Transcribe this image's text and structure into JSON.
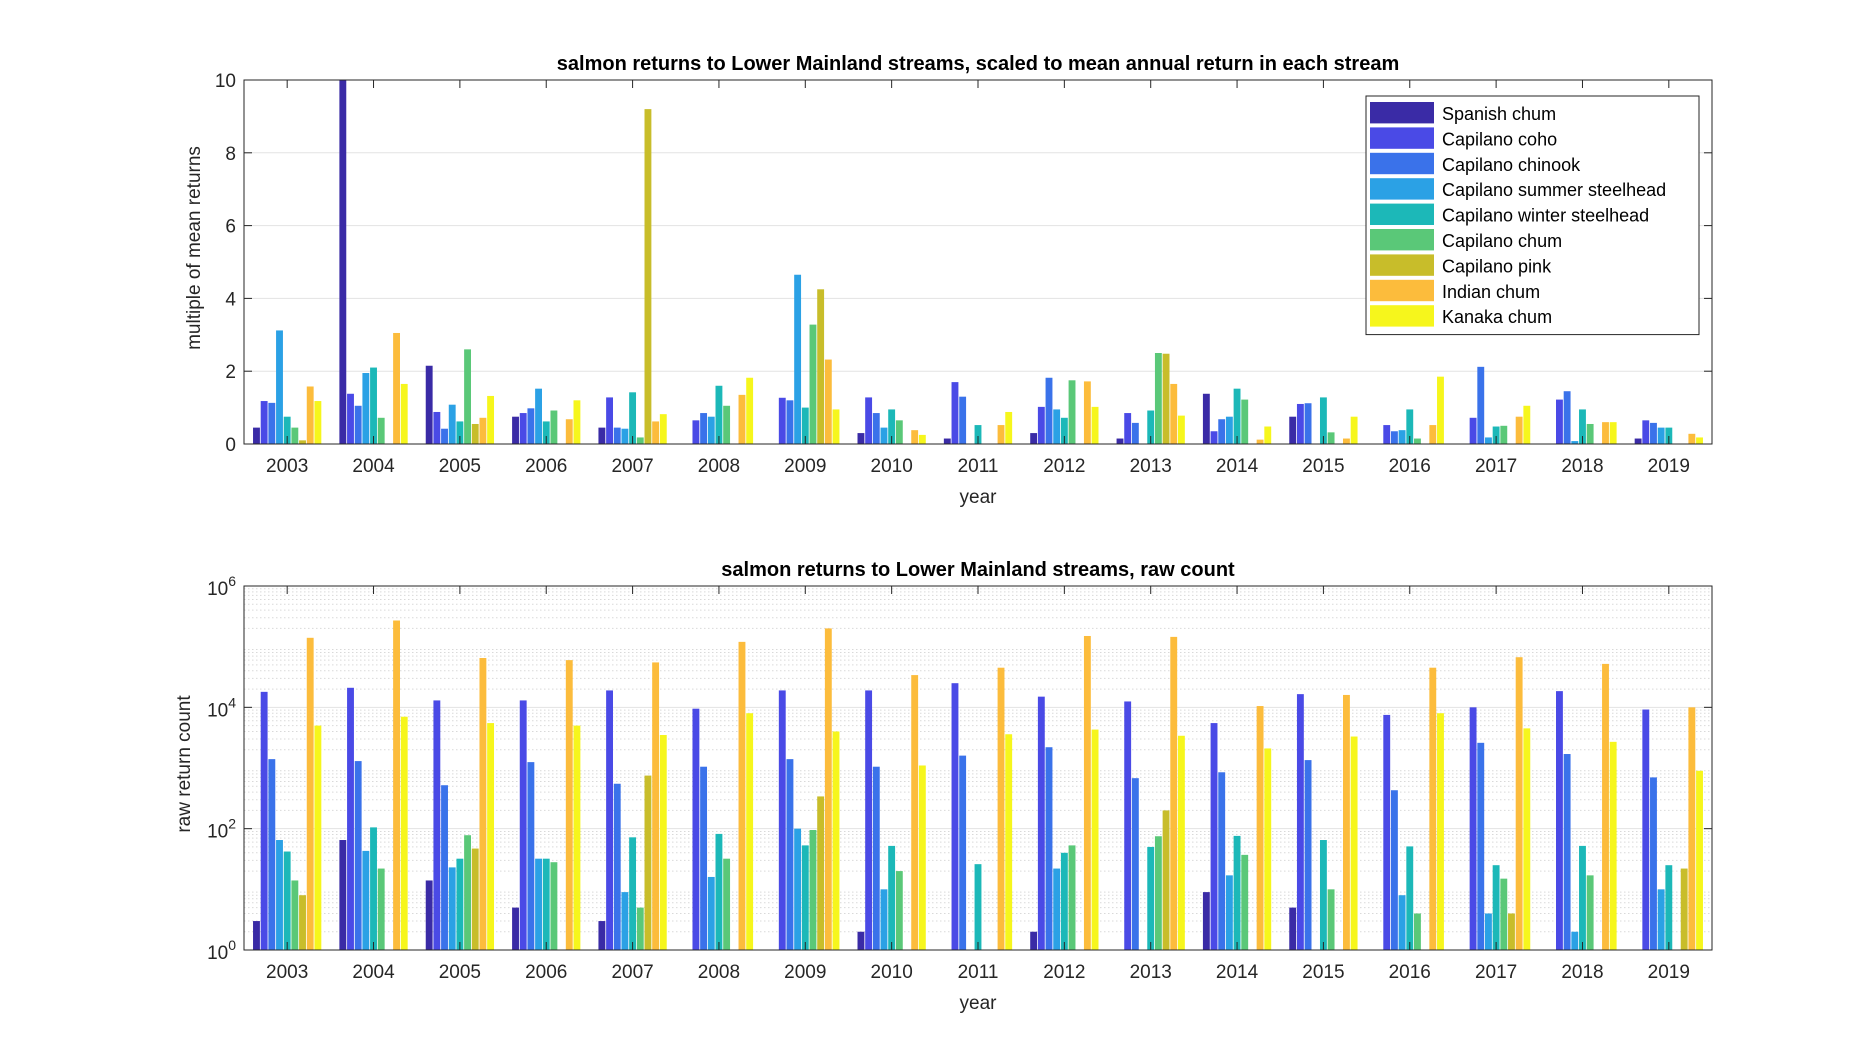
{
  "chart_data": [
    {
      "type": "bar",
      "title": "salmon returns to Lower Mainland streams, scaled to mean annual return in each stream",
      "xlabel": "year",
      "ylabel": "multiple of mean returns",
      "ylim": [
        0,
        10
      ],
      "yscale": "linear",
      "yticks": [
        0,
        2,
        4,
        6,
        8,
        10
      ],
      "ytick_labels": [
        "0",
        "2",
        "4",
        "6",
        "8",
        "10"
      ],
      "grid": "major",
      "legend_position": "top-right",
      "categories": [
        "2003",
        "2004",
        "2005",
        "2006",
        "2007",
        "2008",
        "2009",
        "2010",
        "2011",
        "2012",
        "2013",
        "2014",
        "2015",
        "2016",
        "2017",
        "2018",
        "2019"
      ],
      "series": [
        {
          "name": "Spanish chum",
          "color": "#3a2ba6",
          "values": [
            0.45,
            10.0,
            2.15,
            0.75,
            0.45,
            0,
            0,
            0.3,
            0.15,
            0.3,
            0.15,
            1.38,
            0.75,
            0,
            0,
            0,
            0.15
          ]
        },
        {
          "name": "Capilano coho",
          "color": "#4a4ae6",
          "values": [
            1.18,
            1.38,
            0.88,
            0.85,
            1.28,
            0.65,
            1.27,
            1.28,
            1.7,
            1.02,
            0.85,
            0.35,
            1.1,
            0.52,
            0.72,
            1.22,
            0.65
          ]
        },
        {
          "name": "Capilano chinook",
          "color": "#3a72ea",
          "values": [
            1.13,
            1.05,
            0.42,
            0.98,
            0.45,
            0.85,
            1.2,
            0.85,
            1.3,
            1.82,
            0.58,
            0.68,
            1.12,
            0.35,
            2.12,
            1.45,
            0.58
          ]
        },
        {
          "name": "Capilano summer steelhead",
          "color": "#2ba1e5",
          "values": [
            3.12,
            1.95,
            1.08,
            1.52,
            0.42,
            0.75,
            4.65,
            0.45,
            0,
            0.95,
            0,
            0.75,
            0,
            0.38,
            0.18,
            0.08,
            0.45
          ]
        },
        {
          "name": "Capilano winter steelhead",
          "color": "#1cb8b8",
          "values": [
            0.75,
            2.1,
            0.62,
            0.62,
            1.42,
            1.6,
            1.0,
            0.95,
            0.52,
            0.72,
            0.92,
            1.52,
            1.28,
            0.95,
            0.48,
            0.95,
            0.45
          ]
        },
        {
          "name": "Capilano chum",
          "color": "#5ac878",
          "values": [
            0.45,
            0.72,
            2.6,
            0.92,
            0.18,
            1.05,
            3.28,
            0.65,
            0,
            1.75,
            2.5,
            1.22,
            0.32,
            0.15,
            0.5,
            0.55,
            0
          ]
        },
        {
          "name": "Capilano pink",
          "color": "#c8bd2a",
          "values": [
            0.1,
            0,
            0.55,
            0,
            9.2,
            0,
            4.25,
            0,
            0,
            0,
            2.48,
            0,
            0,
            0,
            0,
            0,
            0
          ]
        },
        {
          "name": "Indian chum",
          "color": "#fcbc3c",
          "values": [
            1.58,
            3.05,
            0.72,
            0.68,
            0.62,
            1.35,
            2.32,
            0.38,
            0.52,
            1.72,
            1.65,
            0.12,
            0.15,
            0.52,
            0.75,
            0.6,
            0.28
          ]
        },
        {
          "name": "Kanaka chum",
          "color": "#f6f61c",
          "values": [
            1.18,
            1.65,
            1.32,
            1.2,
            0.82,
            1.82,
            0.95,
            0.25,
            0.88,
            1.02,
            0.78,
            0.48,
            0.75,
            1.85,
            1.05,
            0.6,
            0.18
          ]
        }
      ]
    },
    {
      "type": "bar",
      "title": "salmon returns to Lower Mainland streams, raw count",
      "xlabel": "year",
      "ylabel": "raw return count",
      "ylim": [
        1,
        1000000
      ],
      "yscale": "log",
      "yticks": [
        1,
        100,
        10000,
        1000000
      ],
      "ytick_labels": [
        {
          "base": "10",
          "exp": "0"
        },
        {
          "base": "10",
          "exp": "2"
        },
        {
          "base": "10",
          "exp": "4"
        },
        {
          "base": "10",
          "exp": "6"
        }
      ],
      "grid": "major+minor",
      "categories": [
        "2003",
        "2004",
        "2005",
        "2006",
        "2007",
        "2008",
        "2009",
        "2010",
        "2011",
        "2012",
        "2013",
        "2014",
        "2015",
        "2016",
        "2017",
        "2018",
        "2019"
      ],
      "series": [
        {
          "name": "Spanish chum",
          "color": "#3a2ba6",
          "values": [
            3,
            65,
            14,
            5,
            3,
            null,
            null,
            2,
            null,
            2,
            null,
            9,
            5,
            null,
            null,
            null,
            null
          ]
        },
        {
          "name": "Capilano coho",
          "color": "#4a4ae6",
          "values": [
            18000,
            21000,
            13000,
            13000,
            19000,
            9500,
            19000,
            19000,
            25000,
            15000,
            12500,
            5500,
            16500,
            7500,
            10000,
            18500,
            9200
          ]
        },
        {
          "name": "Capilano chinook",
          "color": "#3a72ea",
          "values": [
            1400,
            1300,
            520,
            1250,
            550,
            1050,
            1400,
            1050,
            1600,
            2200,
            680,
            850,
            1350,
            430,
            2600,
            1700,
            700
          ]
        },
        {
          "name": "Capilano summer steelhead",
          "color": "#2ba1e5",
          "values": [
            65,
            43,
            23,
            32,
            9,
            16,
            100,
            10,
            null,
            22,
            null,
            17,
            null,
            8,
            4,
            2,
            10
          ]
        },
        {
          "name": "Capilano winter steelhead",
          "color": "#1cb8b8",
          "values": [
            42,
            105,
            32,
            32,
            72,
            82,
            53,
            52,
            26,
            40,
            50,
            76,
            65,
            51,
            25,
            52,
            25
          ]
        },
        {
          "name": "Capilano chum",
          "color": "#5ac878",
          "values": [
            14,
            22,
            78,
            28,
            5,
            32,
            95,
            20,
            null,
            53,
            75,
            37,
            10,
            4,
            15,
            17,
            null
          ]
        },
        {
          "name": "Capilano pink",
          "color": "#c8bd2a",
          "values": [
            8,
            null,
            47,
            null,
            750,
            null,
            340,
            null,
            null,
            null,
            200,
            null,
            null,
            null,
            4,
            null,
            22
          ]
        },
        {
          "name": "Indian chum",
          "color": "#fcbc3c",
          "values": [
            140000,
            270000,
            65000,
            60000,
            55000,
            120000,
            200000,
            34000,
            45000,
            150000,
            145000,
            10500,
            16000,
            45000,
            67000,
            52000,
            10000
          ]
        },
        {
          "name": "Kanaka chum",
          "color": "#f6f61c",
          "values": [
            5000,
            7000,
            5500,
            5000,
            3500,
            8000,
            4000,
            1100,
            3600,
            4300,
            3400,
            2100,
            3300,
            8000,
            4500,
            2700,
            900
          ]
        }
      ]
    }
  ]
}
